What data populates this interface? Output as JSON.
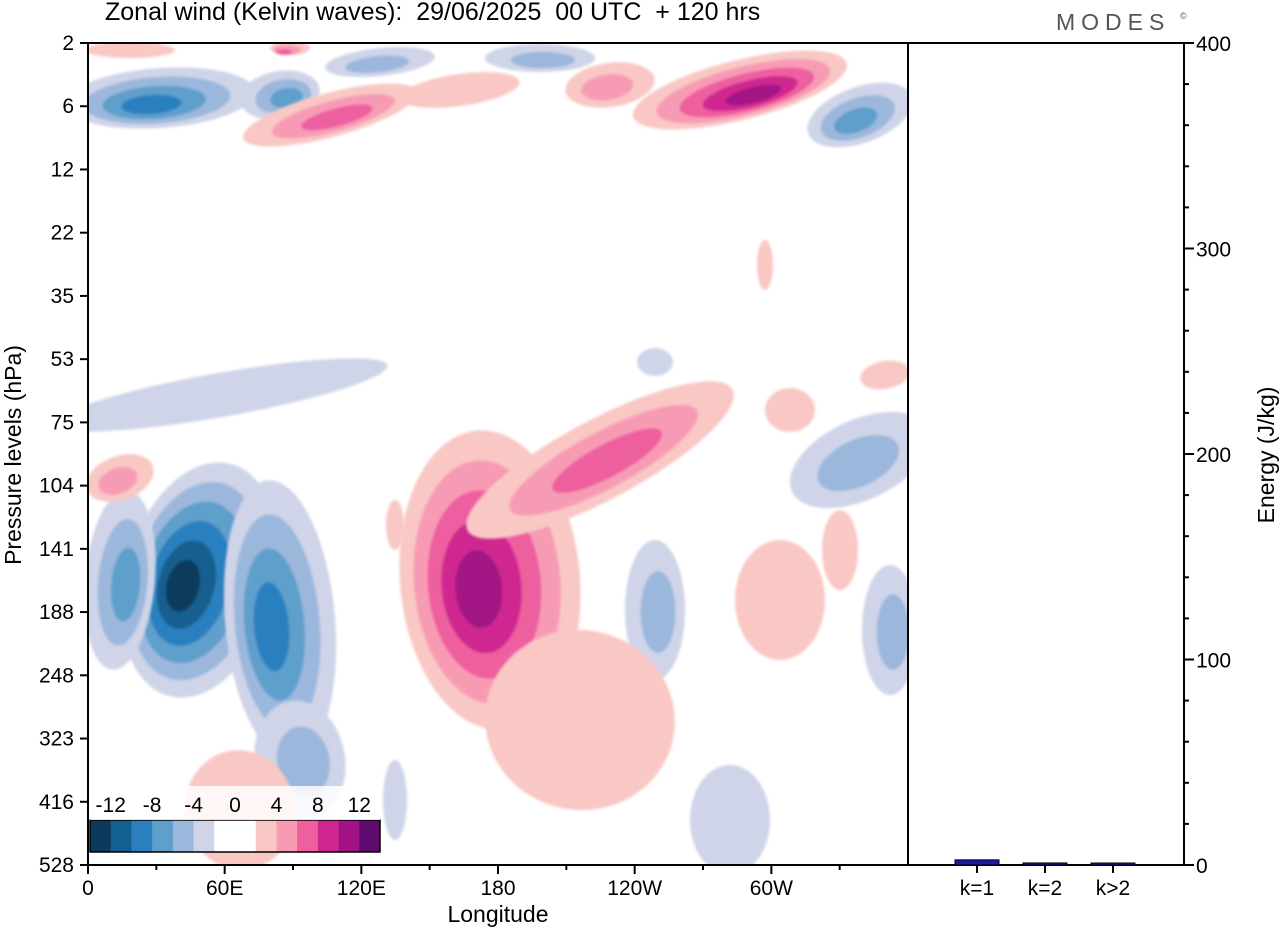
{
  "title": "Zonal wind (Kelvin waves):  29/06/2025  00 UTC  + 120 hrs",
  "brand": "MODES",
  "brand_mark": "©",
  "chart_data": [
    {
      "type": "heatmap",
      "title": "Zonal wind (Kelvin waves):  29/06/2025  00 UTC  + 120 hrs",
      "xlabel": "Longitude",
      "ylabel": "Pressure levels (hPa)",
      "x_ticks": [
        "0",
        "60E",
        "120E",
        "180",
        "120W",
        "60W"
      ],
      "x_tick_degrees": [
        0,
        60,
        120,
        180,
        240,
        300
      ],
      "xlim": [
        0,
        360
      ],
      "y_ticks": [
        "2",
        "6",
        "12",
        "22",
        "35",
        "53",
        "75",
        "104",
        "141",
        "188",
        "248",
        "323",
        "416",
        "528"
      ],
      "colorbar": {
        "labels": [
          "-12",
          "-8",
          "-4",
          "0",
          "4",
          "8",
          "12"
        ],
        "colors": [
          "#0b3a5c",
          "#135f8f",
          "#2b7fbe",
          "#5f9fcc",
          "#9bb7dc",
          "#cfd4e8",
          "#ffffff",
          "#ffffff",
          "#f9c8c4",
          "#f79bb5",
          "#ee5fa0",
          "#d0268f",
          "#a21285",
          "#5e0a6e"
        ]
      },
      "features": [
        {
          "sign": "negative",
          "peak": -10,
          "lon": 55,
          "level": "141-188"
        },
        {
          "sign": "negative",
          "peak": -8,
          "lon": 80,
          "level": "141-248"
        },
        {
          "sign": "negative",
          "peak": -8,
          "lon": 15,
          "level": "6"
        },
        {
          "sign": "positive",
          "peak": 10,
          "lon": 185,
          "level": "141-188"
        },
        {
          "sign": "positive",
          "peak": 8,
          "lon": 250,
          "level": "104"
        },
        {
          "sign": "positive",
          "peak": 10,
          "lon": 295,
          "level": "2-6"
        }
      ]
    },
    {
      "type": "bar",
      "ylabel": "Energy (J/kg)",
      "ylim": [
        0,
        400
      ],
      "y_ticks": [
        "0",
        "100",
        "200",
        "300",
        "400"
      ],
      "categories": [
        "k=1",
        "k=2",
        "k>2"
      ],
      "values": [
        2.5,
        1.0,
        0.6
      ],
      "bar_color": "#1a1aa8"
    }
  ]
}
